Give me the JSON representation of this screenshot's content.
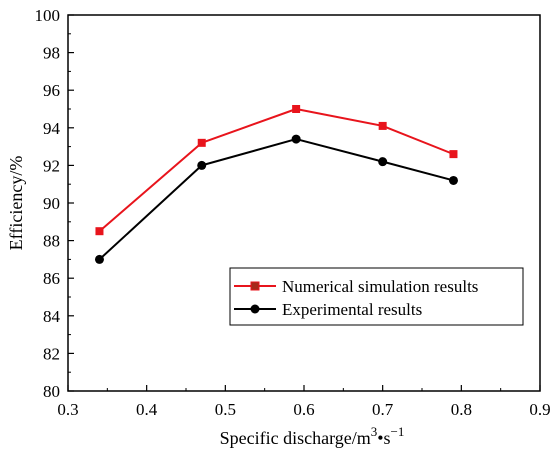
{
  "chart_data": {
    "type": "line",
    "xlabel": "Specific discharge/m",
    "xlabel_sup1": "3",
    "xlabel_mid": "•s",
    "xlabel_sup2": "−1",
    "ylabel": "Efficiency/%",
    "xlim": [
      0.3,
      0.9
    ],
    "ylim": [
      80,
      100
    ],
    "xticks": [
      "0.3",
      "0.4",
      "0.5",
      "0.6",
      "0.7",
      "0.8",
      "0.9"
    ],
    "yticks": [
      "80",
      "82",
      "84",
      "86",
      "88",
      "90",
      "92",
      "94",
      "96",
      "98",
      "100"
    ],
    "grid": false,
    "legend_position": "lower-right",
    "series": [
      {
        "name": "Numerical simulation results",
        "color": "#e8141c",
        "marker": "square",
        "x": [
          0.34,
          0.47,
          0.59,
          0.7,
          0.79
        ],
        "y": [
          88.5,
          93.2,
          95.0,
          94.1,
          92.6
        ]
      },
      {
        "name": "Experimental results",
        "color": "#000000",
        "marker": "circle",
        "x": [
          0.34,
          0.47,
          0.59,
          0.7,
          0.79
        ],
        "y": [
          87.0,
          92.0,
          93.4,
          92.2,
          91.2
        ]
      }
    ]
  }
}
